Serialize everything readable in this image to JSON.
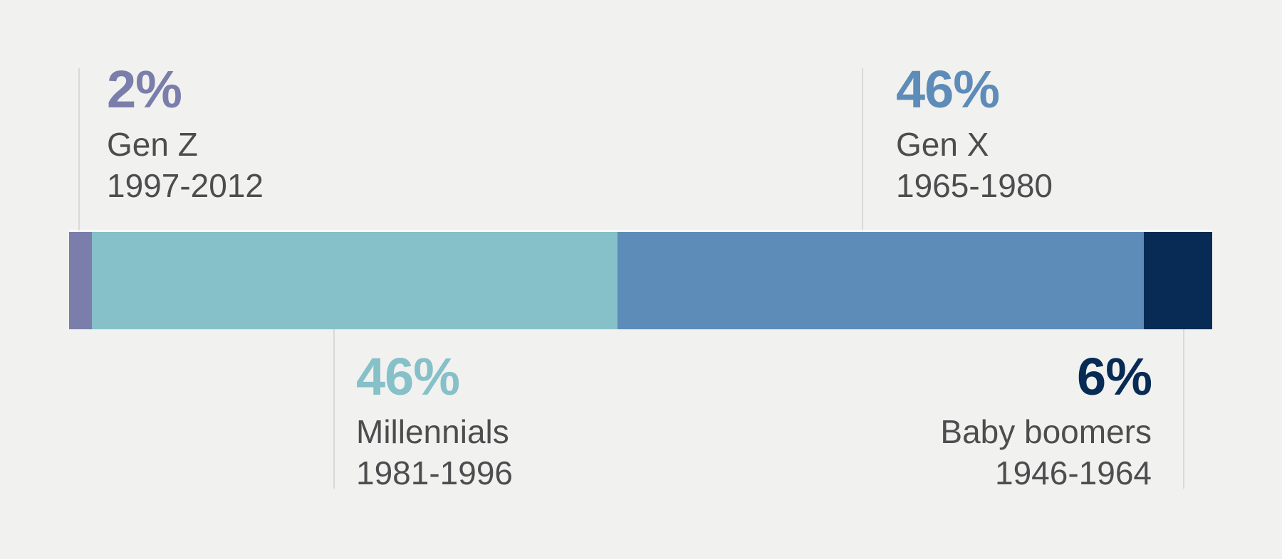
{
  "chart_data": {
    "type": "bar",
    "subtype": "stacked-horizontal-single-bar",
    "title": "",
    "total": 100,
    "unit": "%",
    "legend_position": "callouts",
    "grid": false,
    "categories": [
      "Gen Z",
      "Millennials",
      "Gen X",
      "Baby boomers"
    ],
    "values": [
      2,
      46,
      46,
      6
    ],
    "segments": [
      {
        "label": "Gen Z",
        "years": "1997-2012",
        "value": 2,
        "percent_label": "2%",
        "color": "#7b7dab",
        "callout_position": "above-left",
        "text_align": "left"
      },
      {
        "label": "Millennials",
        "years": "1981-1996",
        "value": 46,
        "percent_label": "46%",
        "color": "#86c0c8",
        "callout_position": "below-left",
        "text_align": "left"
      },
      {
        "label": "Gen X",
        "years": "1965-1980",
        "value": 46,
        "percent_label": "46%",
        "color": "#5e8cb9",
        "callout_position": "above-right",
        "text_align": "left"
      },
      {
        "label": "Baby boomers",
        "years": "1946-1964",
        "value": 6,
        "percent_label": "6%",
        "color": "#082b55",
        "callout_position": "below-right",
        "text_align": "right"
      }
    ]
  },
  "style": {
    "background": "#f1f1ef",
    "label_text_color": "#4d4d4f",
    "guide_line_color": "#d9d9d9"
  }
}
